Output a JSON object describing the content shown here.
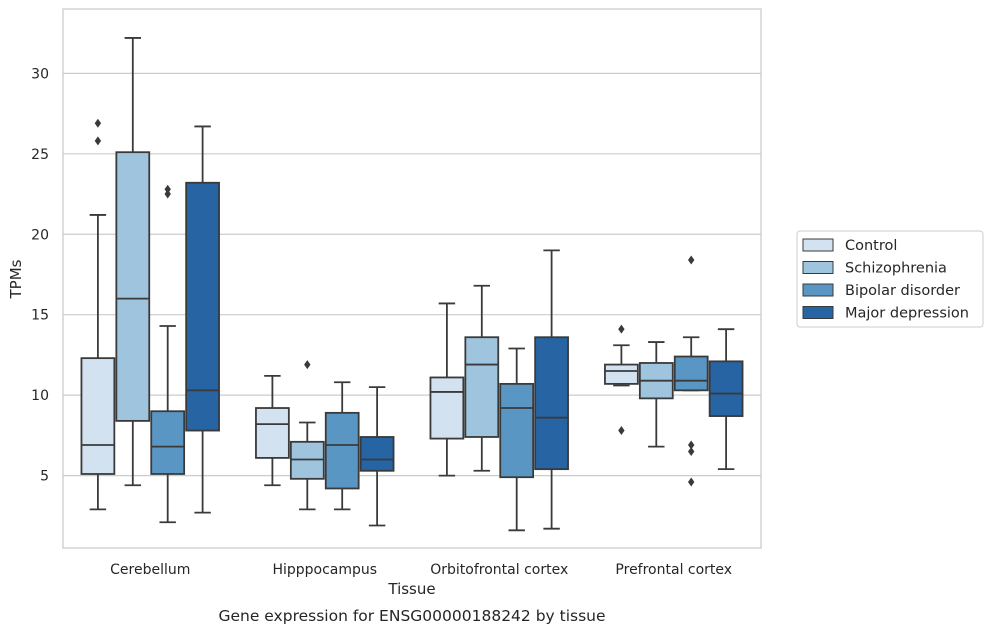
{
  "chart_data": {
    "type": "box",
    "xlabel": "Tissue",
    "ylabel": "TPMs",
    "caption": "Gene expression for ENSG00000188242 by tissue",
    "ylim": [
      0.5,
      34.0
    ],
    "yticks": [
      5,
      10,
      15,
      20,
      25,
      30
    ],
    "grid": "horizontal",
    "legend_position": "right",
    "categories": [
      "Cerebellum",
      "Hipppocampus",
      "Orbitofrontal cortex",
      "Prefrontal cortex"
    ],
    "series": [
      {
        "name": "Control",
        "color": "#d3e2f1",
        "boxes": [
          {
            "whislo": 2.9,
            "q1": 5.1,
            "med": 6.9,
            "q3": 12.3,
            "whishi": 21.2,
            "fliers": []
          },
          {
            "whislo": 4.4,
            "q1": 6.1,
            "med": 8.2,
            "q3": 9.2,
            "whishi": 11.2,
            "fliers": []
          },
          {
            "whislo": 5.0,
            "q1": 7.3,
            "med": 10.2,
            "q3": 11.1,
            "whishi": 15.7,
            "fliers": []
          },
          {
            "whislo": 10.6,
            "q1": 10.7,
            "med": 11.5,
            "q3": 11.9,
            "whishi": 13.1,
            "fliers": [
              14.1,
              7.8
            ]
          }
        ]
      },
      {
        "name": "Schizophrenia",
        "color": "#9ec4de",
        "boxes": [
          {
            "whislo": 4.4,
            "q1": 8.4,
            "med": 16.0,
            "q3": 25.1,
            "whishi": 32.2,
            "fliers": []
          },
          {
            "whislo": 2.9,
            "q1": 4.8,
            "med": 6.0,
            "q3": 7.1,
            "whishi": 8.3,
            "fliers": [
              11.9
            ]
          },
          {
            "whislo": 5.3,
            "q1": 7.4,
            "med": 11.9,
            "q3": 13.6,
            "whishi": 16.8,
            "fliers": []
          },
          {
            "whislo": 6.8,
            "q1": 9.8,
            "med": 10.9,
            "q3": 12.0,
            "whishi": 13.3,
            "fliers": []
          }
        ]
      },
      {
        "name": "Bipolar disorder",
        "color": "#5a96c3",
        "boxes": [
          {
            "whislo": 2.1,
            "q1": 5.1,
            "med": 6.8,
            "q3": 9.0,
            "whishi": 14.3,
            "fliers": [
              22.8,
              22.5
            ]
          },
          {
            "whislo": 2.9,
            "q1": 4.2,
            "med": 6.9,
            "q3": 8.9,
            "whishi": 10.8,
            "fliers": []
          },
          {
            "whislo": 1.6,
            "q1": 4.9,
            "med": 9.2,
            "q3": 10.7,
            "whishi": 12.9,
            "fliers": []
          },
          {
            "whislo": 10.3,
            "q1": 10.3,
            "med": 10.9,
            "q3": 12.4,
            "whishi": 13.6,
            "fliers": [
              18.4,
              6.9,
              6.5,
              4.6
            ]
          }
        ]
      },
      {
        "name": "Major depression",
        "color": "#2664a4",
        "boxes": [
          {
            "whislo": 2.7,
            "q1": 7.8,
            "med": 10.3,
            "q3": 23.2,
            "whishi": 26.7,
            "fliers": []
          },
          {
            "whislo": 1.9,
            "q1": 5.3,
            "med": 6.0,
            "q3": 7.4,
            "whishi": 10.5,
            "fliers": []
          },
          {
            "whislo": 1.7,
            "q1": 5.4,
            "med": 8.6,
            "q3": 13.6,
            "whishi": 19.0,
            "fliers": []
          },
          {
            "whislo": 5.4,
            "q1": 8.7,
            "med": 10.1,
            "q3": 12.1,
            "whishi": 14.1,
            "fliers": []
          }
        ]
      }
    ],
    "extra_fliers": [
      {
        "category": 0,
        "series": 0,
        "value": 26.9
      },
      {
        "category": 0,
        "series": 0,
        "value": 25.8
      }
    ]
  }
}
